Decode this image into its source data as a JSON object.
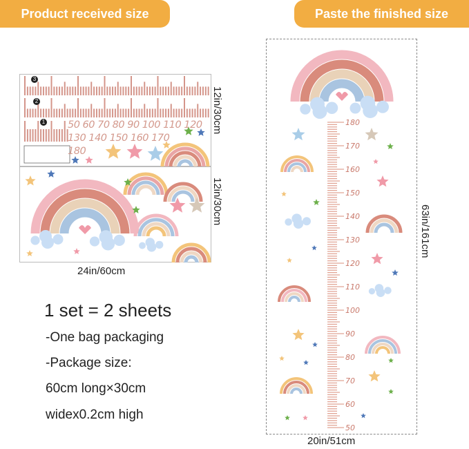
{
  "left": {
    "banner": "Product received size",
    "sheet_height_1": "12in/30cm",
    "sheet_height_2": "12in/30cm",
    "width": "24in/60cm",
    "sheet_numbers": [
      "3",
      "2",
      "1"
    ],
    "numbers_row1": "50 60 70 80 90 100 110 120",
    "numbers_row2": "130 140 150 160 170",
    "numbers_row3": "180",
    "set": "1 set = 2 sheets",
    "details": [
      "-One bag packaging",
      "-Package size:",
      "60cm long×30cm",
      "widex0.2cm high"
    ]
  },
  "right": {
    "banner": "Paste the finished size",
    "height": "63in/161cm",
    "width": "20in/51cm",
    "ruler_labels": [
      "180",
      "170",
      "160",
      "150",
      "140",
      "130",
      "120",
      "110",
      "100",
      "90",
      "80",
      "70",
      "60",
      "50"
    ]
  },
  "colors": {
    "banner": "#f2ad42",
    "ruler": "#e0a090",
    "cloud": "#c9def5"
  }
}
